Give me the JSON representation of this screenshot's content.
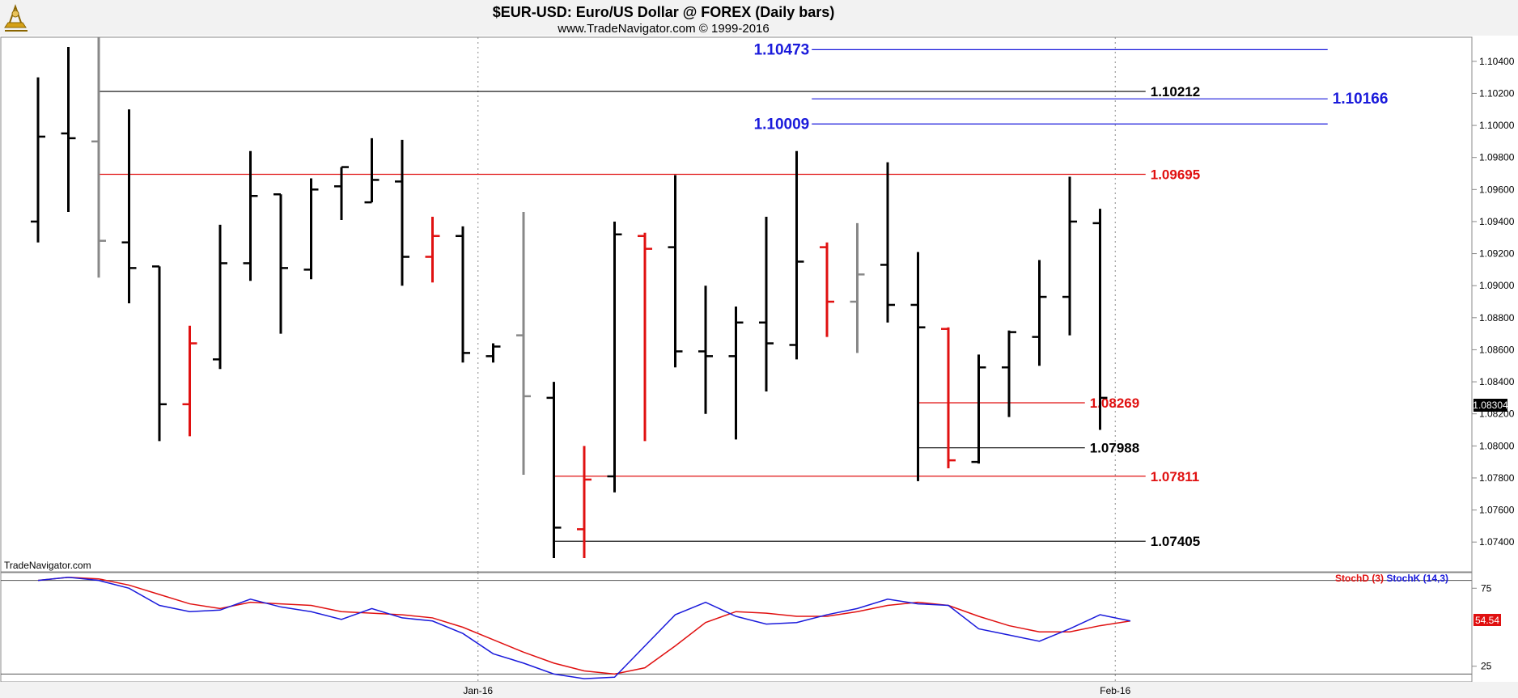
{
  "header": {
    "title": "$EUR-USD:  Euro/US Dollar @ FOREX  (Daily bars)",
    "subtitle": "www.TradeNavigator.com © 1999-2016",
    "watermark": "TradeNavigator.com"
  },
  "chart_data": [
    {
      "type": "ohlc",
      "title": "$EUR-USD:  Euro/US Dollar @ FOREX  (Daily bars)",
      "ylim": [
        1.073,
        1.105
      ],
      "y_ticks": [
        "1.10400",
        "1.10200",
        "1.10000",
        "1.09800",
        "1.09600",
        "1.09400",
        "1.09200",
        "1.09000",
        "1.08800",
        "1.08600",
        "1.08400",
        "1.08200",
        "1.08000",
        "1.07800",
        "1.07600",
        "1.07400"
      ],
      "x_labels": [
        {
          "label": "Jan-16",
          "bar": 14.5
        },
        {
          "label": "Feb-16",
          "bar": 35.5
        }
      ],
      "last_price": "1.08304",
      "bars": [
        {
          "o": 1.094,
          "h": 1.103,
          "l": 1.0927,
          "c": 1.0993,
          "color": "black"
        },
        {
          "o": 1.0995,
          "h": 1.1049,
          "l": 1.0946,
          "c": 1.0992,
          "color": "black"
        },
        {
          "o": 1.099,
          "h": 1.1055,
          "l": 1.0905,
          "c": 1.0928,
          "color": "gray"
        },
        {
          "o": 1.0927,
          "h": 1.101,
          "l": 1.0889,
          "c": 1.0911,
          "color": "black"
        },
        {
          "o": 1.0912,
          "h": 1.0912,
          "l": 1.0803,
          "c": 1.0826,
          "color": "black"
        },
        {
          "o": 1.0826,
          "h": 1.0875,
          "l": 1.0806,
          "c": 1.0864,
          "color": "red"
        },
        {
          "o": 1.0854,
          "h": 1.0938,
          "l": 1.0848,
          "c": 1.0914,
          "color": "black"
        },
        {
          "o": 1.0914,
          "h": 1.0984,
          "l": 1.0903,
          "c": 1.0956,
          "color": "black"
        },
        {
          "o": 1.0957,
          "h": 1.0957,
          "l": 1.087,
          "c": 1.0911,
          "color": "black"
        },
        {
          "o": 1.091,
          "h": 1.0967,
          "l": 1.0904,
          "c": 1.096,
          "color": "black"
        },
        {
          "o": 1.0962,
          "h": 1.0974,
          "l": 1.0941,
          "c": 1.0974,
          "color": "black"
        },
        {
          "o": 1.0952,
          "h": 1.0992,
          "l": 1.0952,
          "c": 1.0966,
          "color": "black"
        },
        {
          "o": 1.0965,
          "h": 1.0991,
          "l": 1.09,
          "c": 1.0918,
          "color": "black"
        },
        {
          "o": 1.0918,
          "h": 1.0943,
          "l": 1.0902,
          "c": 1.0931,
          "color": "red"
        },
        {
          "o": 1.0931,
          "h": 1.0937,
          "l": 1.0852,
          "c": 1.0858,
          "color": "black"
        },
        {
          "o": 1.0856,
          "h": 1.0864,
          "l": 1.0852,
          "c": 1.0862,
          "color": "black"
        },
        {
          "o": 1.0869,
          "h": 1.0946,
          "l": 1.0782,
          "c": 1.0831,
          "color": "gray"
        },
        {
          "o": 1.083,
          "h": 1.084,
          "l": 1.073,
          "c": 1.0749,
          "color": "black"
        },
        {
          "o": 1.0748,
          "h": 1.08,
          "l": 1.073,
          "c": 1.0779,
          "color": "red"
        },
        {
          "o": 1.0781,
          "h": 1.094,
          "l": 1.0771,
          "c": 1.0932,
          "color": "black"
        },
        {
          "o": 1.0931,
          "h": 1.0933,
          "l": 1.0803,
          "c": 1.0923,
          "color": "red"
        },
        {
          "o": 1.0924,
          "h": 1.0969,
          "l": 1.0849,
          "c": 1.0859,
          "color": "black"
        },
        {
          "o": 1.0859,
          "h": 1.09,
          "l": 1.082,
          "c": 1.0856,
          "color": "black"
        },
        {
          "o": 1.0856,
          "h": 1.0887,
          "l": 1.0804,
          "c": 1.0877,
          "color": "black"
        },
        {
          "o": 1.0877,
          "h": 1.0943,
          "l": 1.0834,
          "c": 1.0864,
          "color": "black"
        },
        {
          "o": 1.0863,
          "h": 1.0984,
          "l": 1.0854,
          "c": 1.0915,
          "color": "black"
        },
        {
          "o": 1.0924,
          "h": 1.0927,
          "l": 1.0868,
          "c": 1.089,
          "color": "red"
        },
        {
          "o": 1.089,
          "h": 1.0939,
          "l": 1.0858,
          "c": 1.0907,
          "color": "gray"
        },
        {
          "o": 1.0913,
          "h": 1.0977,
          "l": 1.0877,
          "c": 1.0888,
          "color": "black"
        },
        {
          "o": 1.0888,
          "h": 1.0921,
          "l": 1.0778,
          "c": 1.0874,
          "color": "black"
        },
        {
          "o": 1.0873,
          "h": 1.0874,
          "l": 1.0786,
          "c": 1.0791,
          "color": "red"
        },
        {
          "o": 1.079,
          "h": 1.0857,
          "l": 1.0789,
          "c": 1.0849,
          "color": "black"
        },
        {
          "o": 1.0849,
          "h": 1.0872,
          "l": 1.0818,
          "c": 1.0871,
          "color": "black"
        },
        {
          "o": 1.0868,
          "h": 1.0916,
          "l": 1.085,
          "c": 1.0893,
          "color": "black"
        },
        {
          "o": 1.0893,
          "h": 1.0968,
          "l": 1.0869,
          "c": 1.094,
          "color": "black"
        },
        {
          "o": 1.0939,
          "h": 1.0948,
          "l": 1.081,
          "c": 1.083,
          "color": "black"
        }
      ],
      "levels": [
        {
          "value": 1.10473,
          "label": "1.10473",
          "color": "#1a1adb",
          "from_bar": 25.5,
          "to_bar": 42.5,
          "label_side": "left"
        },
        {
          "value": 1.10212,
          "label": "1.10212",
          "color": "#000000",
          "from_bar": 2.0,
          "to_bar": 36.5,
          "label_side": "right"
        },
        {
          "value": 1.10166,
          "label": "1.10166",
          "color": "#1a1adb",
          "from_bar": 25.5,
          "to_bar": 42.5,
          "label_side": "right"
        },
        {
          "value": 1.10009,
          "label": "1.10009",
          "color": "#1a1adb",
          "from_bar": 25.5,
          "to_bar": 42.5,
          "label_side": "left"
        },
        {
          "value": 1.09695,
          "label": "1.09695",
          "color": "#e01010",
          "from_bar": 2.0,
          "to_bar": 36.5,
          "label_side": "right"
        },
        {
          "value": 1.08269,
          "label": "1.08269",
          "color": "#e01010",
          "from_bar": 29.0,
          "to_bar": 34.5,
          "label_side": "right"
        },
        {
          "value": 1.07988,
          "label": "1.07988",
          "color": "#000000",
          "from_bar": 29.0,
          "to_bar": 34.5,
          "label_side": "right"
        },
        {
          "value": 1.07811,
          "label": "1.07811",
          "color": "#e01010",
          "from_bar": 17.0,
          "to_bar": 36.5,
          "label_side": "right"
        },
        {
          "value": 1.07405,
          "label": "1.07405",
          "color": "#000000",
          "from_bar": 17.0,
          "to_bar": 36.5,
          "label_side": "right"
        }
      ]
    },
    {
      "type": "line",
      "title": "",
      "ylim": [
        15,
        85
      ],
      "y_ticks": [
        "75",
        "25"
      ],
      "reference_lines": [
        80,
        20
      ],
      "legend": [
        "StochD (3)",
        "StochK (14,3)"
      ],
      "last_value": "54.54",
      "series": [
        {
          "name": "StochD (3)",
          "color": "#e01010",
          "values": [
            80,
            82,
            81,
            77,
            71,
            65,
            62,
            66,
            65,
            64,
            60,
            59,
            58,
            56,
            50,
            42,
            34,
            27,
            22,
            20,
            24,
            38,
            53,
            60,
            59,
            57,
            57,
            60,
            64,
            66,
            64,
            57,
            51,
            47,
            47,
            51,
            54
          ]
        },
        {
          "name": "StochK (14,3)",
          "color": "#1a1adb",
          "values": [
            80,
            82,
            80,
            75,
            64,
            60,
            61,
            68,
            63,
            60,
            55,
            62,
            56,
            54,
            46,
            33,
            27,
            20,
            17,
            18,
            38,
            58,
            66,
            57,
            52,
            53,
            58,
            62,
            68,
            65,
            64,
            49,
            45,
            41,
            49,
            58,
            54
          ]
        }
      ]
    }
  ]
}
